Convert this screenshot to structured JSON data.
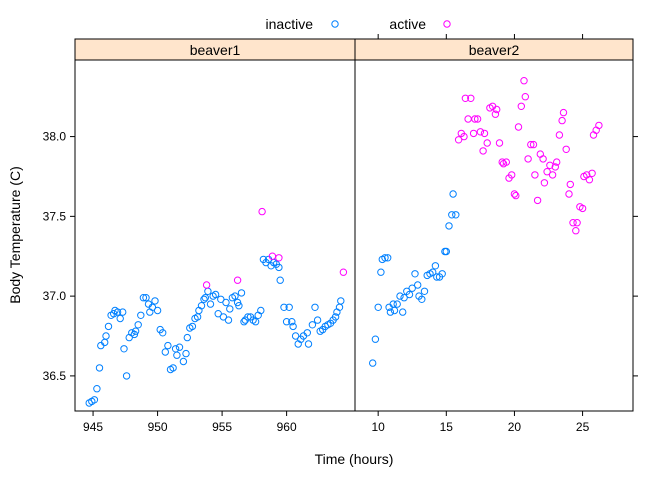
{
  "chart_data": {
    "type": "scatter",
    "xlabel": "Time (hours)",
    "ylabel": "Body Temperature (C)",
    "legend": {
      "placement": "top-center",
      "entries": [
        {
          "name": "inactive",
          "color": "#0080ff"
        },
        {
          "name": "active",
          "color": "#ff00ff"
        }
      ]
    },
    "ylim": [
      36.28,
      38.48
    ],
    "yticks": [
      "36.5",
      "37.0",
      "37.5",
      "38.0"
    ],
    "panels": [
      {
        "title": "beaver1",
        "xlim": [
          943.6,
          965.3
        ],
        "xticks": [
          "945",
          "950",
          "955",
          "960"
        ],
        "series": [
          {
            "name": "inactive",
            "points": [
              [
                944.7,
                36.33
              ],
              [
                944.9,
                36.34
              ],
              [
                945.1,
                36.35
              ],
              [
                945.3,
                36.42
              ],
              [
                945.5,
                36.55
              ],
              [
                945.6,
                36.69
              ],
              [
                945.9,
                36.71
              ],
              [
                946.0,
                36.75
              ],
              [
                946.2,
                36.81
              ],
              [
                946.4,
                36.88
              ],
              [
                946.6,
                36.89
              ],
              [
                946.7,
                36.91
              ],
              [
                946.9,
                36.9
              ],
              [
                947.1,
                36.86
              ],
              [
                947.3,
                36.9
              ],
              [
                947.4,
                36.67
              ],
              [
                947.6,
                36.5
              ],
              [
                947.8,
                36.74
              ],
              [
                948.0,
                36.77
              ],
              [
                948.2,
                36.76
              ],
              [
                948.3,
                36.78
              ],
              [
                948.5,
                36.82
              ],
              [
                948.7,
                36.88
              ],
              [
                948.9,
                36.99
              ],
              [
                949.1,
                36.99
              ],
              [
                949.3,
                36.95
              ],
              [
                949.4,
                36.9
              ],
              [
                949.6,
                36.93
              ],
              [
                949.8,
                36.97
              ],
              [
                950.0,
                36.91
              ],
              [
                950.2,
                36.79
              ],
              [
                950.4,
                36.77
              ],
              [
                950.6,
                36.65
              ],
              [
                950.8,
                36.69
              ],
              [
                951.0,
                36.54
              ],
              [
                951.2,
                36.55
              ],
              [
                951.4,
                36.67
              ],
              [
                951.5,
                36.63
              ],
              [
                951.7,
                36.68
              ],
              [
                952.0,
                36.59
              ],
              [
                952.2,
                36.64
              ],
              [
                952.3,
                36.74
              ],
              [
                952.5,
                36.8
              ],
              [
                952.7,
                36.81
              ],
              [
                952.9,
                36.86
              ],
              [
                953.1,
                36.87
              ],
              [
                953.2,
                36.91
              ],
              [
                953.4,
                36.94
              ],
              [
                953.6,
                36.98
              ],
              [
                953.7,
                36.99
              ],
              [
                953.9,
                37.03
              ],
              [
                954.1,
                36.95
              ],
              [
                954.3,
                37.0
              ],
              [
                954.5,
                37.01
              ],
              [
                954.7,
                36.89
              ],
              [
                954.9,
                36.98
              ],
              [
                955.1,
                36.87
              ],
              [
                955.3,
                36.96
              ],
              [
                955.5,
                36.85
              ],
              [
                955.6,
                36.92
              ],
              [
                955.8,
                36.99
              ],
              [
                956.0,
                37.0
              ],
              [
                956.2,
                36.96
              ],
              [
                956.3,
                36.94
              ],
              [
                956.5,
                37.02
              ],
              [
                956.7,
                36.84
              ],
              [
                956.8,
                36.85
              ],
              [
                957.0,
                36.87
              ],
              [
                957.2,
                36.87
              ],
              [
                957.4,
                36.85
              ],
              [
                957.6,
                36.84
              ],
              [
                957.8,
                36.88
              ],
              [
                958.0,
                36.91
              ],
              [
                958.2,
                37.23
              ],
              [
                958.4,
                37.21
              ],
              [
                958.6,
                37.23
              ],
              [
                958.8,
                37.19
              ],
              [
                959.0,
                37.21
              ],
              [
                959.2,
                37.2
              ],
              [
                959.4,
                37.18
              ],
              [
                959.5,
                37.1
              ],
              [
                959.8,
                36.93
              ],
              [
                960.0,
                36.84
              ],
              [
                960.2,
                36.93
              ],
              [
                960.4,
                36.84
              ],
              [
                960.5,
                36.81
              ],
              [
                960.7,
                36.75
              ],
              [
                960.9,
                36.7
              ],
              [
                961.1,
                36.73
              ],
              [
                961.3,
                36.75
              ],
              [
                961.6,
                36.77
              ],
              [
                961.7,
                36.7
              ],
              [
                962.0,
                36.82
              ],
              [
                962.2,
                36.93
              ],
              [
                962.4,
                36.85
              ],
              [
                962.6,
                36.78
              ],
              [
                962.8,
                36.79
              ],
              [
                963.0,
                36.81
              ],
              [
                963.2,
                36.82
              ],
              [
                963.4,
                36.83
              ],
              [
                963.6,
                36.85
              ],
              [
                963.8,
                36.87
              ],
              [
                963.9,
                36.9
              ],
              [
                964.1,
                36.93
              ],
              [
                964.2,
                36.97
              ]
            ]
          },
          {
            "name": "active",
            "points": [
              [
                953.8,
                37.07
              ],
              [
                956.2,
                37.1
              ],
              [
                958.1,
                37.53
              ],
              [
                958.9,
                37.25
              ],
              [
                959.4,
                37.24
              ],
              [
                964.4,
                37.15
              ]
            ]
          }
        ]
      },
      {
        "title": "beaver2",
        "xlim": [
          8.3,
          28.7
        ],
        "xticks": [
          "10",
          "15",
          "20",
          "25"
        ],
        "series": [
          {
            "name": "inactive",
            "points": [
              [
                9.6,
                36.58
              ],
              [
                9.8,
                36.73
              ],
              [
                10.0,
                36.93
              ],
              [
                10.2,
                37.15
              ],
              [
                10.3,
                37.23
              ],
              [
                10.5,
                37.24
              ],
              [
                10.7,
                37.24
              ],
              [
                10.8,
                36.93
              ],
              [
                10.9,
                36.9
              ],
              [
                11.1,
                36.95
              ],
              [
                11.2,
                36.91
              ],
              [
                11.4,
                36.95
              ],
              [
                11.6,
                37.0
              ],
              [
                11.8,
                36.9
              ],
              [
                11.9,
                36.99
              ],
              [
                12.1,
                37.03
              ],
              [
                12.3,
                37.01
              ],
              [
                12.5,
                37.05
              ],
              [
                12.7,
                37.14
              ],
              [
                12.9,
                37.07
              ],
              [
                13.0,
                37.0
              ],
              [
                13.2,
                36.98
              ],
              [
                13.4,
                37.03
              ],
              [
                13.6,
                37.13
              ],
              [
                13.8,
                37.14
              ],
              [
                14.0,
                37.15
              ],
              [
                14.2,
                37.19
              ],
              [
                14.3,
                37.12
              ],
              [
                14.5,
                37.12
              ],
              [
                14.7,
                37.14
              ],
              [
                14.9,
                37.28
              ],
              [
                15.0,
                37.28
              ],
              [
                15.2,
                37.44
              ],
              [
                15.4,
                37.51
              ],
              [
                15.5,
                37.64
              ],
              [
                15.7,
                37.51
              ]
            ]
          },
          {
            "name": "active",
            "points": [
              [
                15.9,
                37.98
              ],
              [
                16.1,
                38.02
              ],
              [
                16.3,
                38.0
              ],
              [
                16.4,
                38.24
              ],
              [
                16.6,
                38.11
              ],
              [
                16.8,
                38.24
              ],
              [
                17.0,
                38.02
              ],
              [
                17.1,
                38.11
              ],
              [
                17.3,
                38.11
              ],
              [
                17.5,
                38.03
              ],
              [
                17.7,
                37.91
              ],
              [
                17.8,
                38.02
              ],
              [
                18.0,
                37.96
              ],
              [
                18.2,
                38.18
              ],
              [
                18.4,
                38.19
              ],
              [
                18.6,
                38.14
              ],
              [
                18.7,
                38.17
              ],
              [
                18.9,
                37.96
              ],
              [
                19.1,
                37.84
              ],
              [
                19.2,
                37.83
              ],
              [
                19.4,
                37.84
              ],
              [
                19.6,
                37.74
              ],
              [
                19.8,
                37.76
              ],
              [
                20.0,
                37.64
              ],
              [
                20.1,
                37.63
              ],
              [
                20.3,
                38.06
              ],
              [
                20.5,
                38.19
              ],
              [
                20.7,
                38.35
              ],
              [
                20.8,
                38.25
              ],
              [
                21.0,
                37.86
              ],
              [
                21.2,
                37.95
              ],
              [
                21.4,
                37.95
              ],
              [
                21.5,
                37.76
              ],
              [
                21.7,
                37.6
              ],
              [
                21.9,
                37.89
              ],
              [
                22.1,
                37.86
              ],
              [
                22.2,
                37.71
              ],
              [
                22.4,
                37.78
              ],
              [
                22.6,
                37.82
              ],
              [
                22.8,
                37.76
              ],
              [
                23.0,
                37.81
              ],
              [
                23.1,
                37.84
              ],
              [
                23.3,
                38.01
              ],
              [
                23.5,
                38.1
              ],
              [
                23.6,
                38.15
              ],
              [
                23.8,
                37.92
              ],
              [
                24.0,
                37.64
              ],
              [
                24.1,
                37.7
              ],
              [
                24.3,
                37.46
              ],
              [
                24.5,
                37.41
              ],
              [
                24.6,
                37.46
              ],
              [
                24.8,
                37.56
              ],
              [
                25.0,
                37.55
              ],
              [
                25.1,
                37.75
              ],
              [
                25.3,
                37.76
              ],
              [
                25.5,
                37.73
              ],
              [
                25.7,
                37.77
              ],
              [
                25.8,
                38.01
              ],
              [
                26.0,
                38.04
              ],
              [
                26.2,
                38.07
              ]
            ]
          }
        ]
      }
    ]
  }
}
